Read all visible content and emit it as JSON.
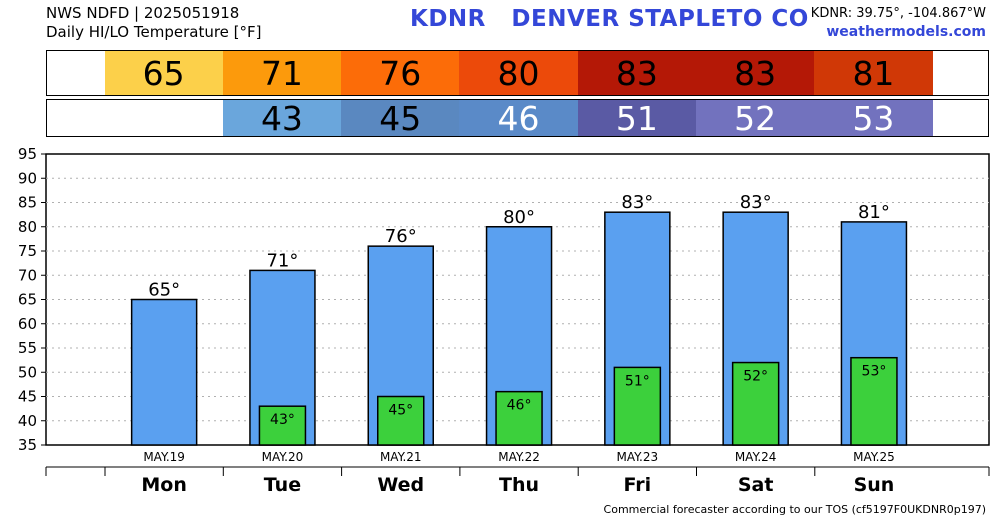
{
  "header": {
    "line1": "NWS NDFD | 2025051918",
    "line2": "Daily HI/LO Temperature [°F]",
    "station_code": "KDNR",
    "station_name": "DENVER STAPLETO CO",
    "coords": "KDNR: 39.75°, -104.867°W",
    "site": "weathermodels.com"
  },
  "footer": "Commercial forecaster according to our TOS (cf5197F0UKDNR0p197)",
  "colors": {
    "high_bar": "#5aa0f0",
    "low_bar": "#3cd03c",
    "high_strip": [
      "#fcd04a",
      "#fc9a0c",
      "#fc6c08",
      "#ec4a0a",
      "#b41806",
      "#b41806",
      "#d03806"
    ],
    "low_strip": [
      "#6aa6dc",
      "#5a88c0",
      "#5a8ac8",
      "#5a5aa4",
      "#7272be",
      "#7272be"
    ]
  },
  "strips": {
    "highs": [
      "65",
      "71",
      "76",
      "80",
      "83",
      "83",
      "81"
    ],
    "lows": [
      "43",
      "45",
      "46",
      "51",
      "52",
      "53"
    ]
  },
  "chart_data": {
    "type": "bar",
    "categories": [
      "Mon",
      "Tue",
      "Wed",
      "Thu",
      "Fri",
      "Sat",
      "Sun"
    ],
    "dates": [
      "MAY.19",
      "MAY.20",
      "MAY.21",
      "MAY.22",
      "MAY.23",
      "MAY.24",
      "MAY.25"
    ],
    "series": [
      {
        "name": "",
        "values": [
          65,
          71,
          76,
          80,
          83,
          83,
          81
        ]
      },
      {
        "name": "",
        "values": [
          null,
          43,
          45,
          46,
          51,
          52,
          53
        ]
      }
    ],
    "high_labels": [
      "65°",
      "71°",
      "76°",
      "80°",
      "83°",
      "83°",
      "81°"
    ],
    "low_labels": [
      "",
      "43°",
      "45°",
      "46°",
      "51°",
      "52°",
      "53°"
    ],
    "yticks": [
      "35",
      "40",
      "45",
      "50",
      "55",
      "60",
      "65",
      "70",
      "75",
      "80",
      "85",
      "90",
      "95"
    ],
    "ylim": [
      35,
      95
    ],
    "grid": true
  }
}
